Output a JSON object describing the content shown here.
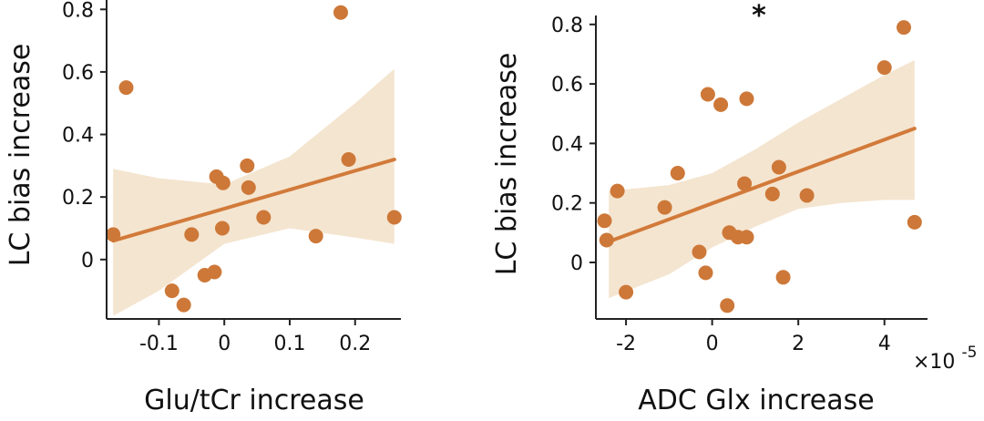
{
  "chart_data": [
    {
      "type": "scatter",
      "xlabel": "Glu/tCr increase",
      "ylabel": "LC bias increase",
      "xlim": [
        -0.18,
        0.27
      ],
      "ylim": [
        -0.19,
        0.83
      ],
      "xticks": [
        -0.1,
        0,
        0.1,
        0.2
      ],
      "xtick_labels": [
        "-0.1",
        "0",
        "0.1",
        "0.2"
      ],
      "yticks": [
        0,
        0.2,
        0.4,
        0.6,
        0.8
      ],
      "ytick_labels": [
        "0",
        "0.2",
        "0.4",
        "0.6",
        "0.8"
      ],
      "colors": {
        "points": "#cd7838",
        "fit": "#d27a3a",
        "band": "#f0dcc0"
      },
      "fit": {
        "x": [
          -0.17,
          0.26
        ],
        "y": [
          0.06,
          0.32
        ]
      },
      "band": {
        "x": [
          -0.17,
          -0.1,
          0,
          0.1,
          0.2,
          0.26
        ],
        "upper": [
          0.29,
          0.26,
          0.24,
          0.33,
          0.5,
          0.61
        ],
        "lower": [
          -0.18,
          -0.1,
          0.05,
          0.1,
          0.07,
          0.05
        ]
      },
      "points": [
        {
          "x": -0.17,
          "y": 0.08
        },
        {
          "x": -0.15,
          "y": 0.55
        },
        {
          "x": -0.08,
          "y": -0.1
        },
        {
          "x": -0.062,
          "y": -0.145
        },
        {
          "x": -0.05,
          "y": 0.08
        },
        {
          "x": -0.03,
          "y": -0.05
        },
        {
          "x": -0.015,
          "y": -0.04
        },
        {
          "x": -0.012,
          "y": 0.265
        },
        {
          "x": -0.002,
          "y": 0.245
        },
        {
          "x": -0.003,
          "y": 0.1
        },
        {
          "x": 0.035,
          "y": 0.3
        },
        {
          "x": 0.037,
          "y": 0.23
        },
        {
          "x": 0.06,
          "y": 0.135
        },
        {
          "x": 0.14,
          "y": 0.075
        },
        {
          "x": 0.178,
          "y": 0.79
        },
        {
          "x": 0.19,
          "y": 0.32
        },
        {
          "x": 0.26,
          "y": 0.135
        }
      ]
    },
    {
      "type": "scatter",
      "xlabel": "ADC Glx increase",
      "ylabel": "LC bias increase",
      "annotation": "*",
      "x_multiplier": "×10",
      "x_multiplier_exp": "-5",
      "xlim": [
        -2.7,
        5.0
      ],
      "ylim": [
        -0.19,
        0.83
      ],
      "xticks": [
        -2,
        0,
        2,
        4
      ],
      "xtick_labels": [
        "-2",
        "0",
        "2",
        "4"
      ],
      "yticks": [
        0,
        0.2,
        0.4,
        0.6,
        0.8
      ],
      "ytick_labels": [
        "0",
        "0.2",
        "0.4",
        "0.6",
        "0.8"
      ],
      "colors": {
        "points": "#cd7838",
        "fit": "#d27a3a",
        "band": "#f0dcc0"
      },
      "fit": {
        "x": [
          -2.4,
          4.7
        ],
        "y": [
          0.07,
          0.45
        ]
      },
      "band": {
        "x": [
          -2.4,
          -1,
          0,
          1,
          2,
          3,
          4,
          4.7
        ],
        "upper": [
          0.24,
          0.26,
          0.3,
          0.38,
          0.47,
          0.55,
          0.63,
          0.68
        ],
        "lower": [
          -0.12,
          -0.04,
          0.05,
          0.12,
          0.18,
          0.2,
          0.21,
          0.21
        ]
      },
      "points": [
        {
          "x": -2.5,
          "y": 0.14
        },
        {
          "x": -2.45,
          "y": 0.075
        },
        {
          "x": -2.2,
          "y": 0.24
        },
        {
          "x": -2.0,
          "y": -0.1
        },
        {
          "x": -1.1,
          "y": 0.185
        },
        {
          "x": -0.8,
          "y": 0.3
        },
        {
          "x": -0.3,
          "y": 0.035
        },
        {
          "x": -0.15,
          "y": -0.035
        },
        {
          "x": -0.1,
          "y": 0.565
        },
        {
          "x": 0.2,
          "y": 0.53
        },
        {
          "x": 0.35,
          "y": -0.145
        },
        {
          "x": 0.4,
          "y": 0.1
        },
        {
          "x": 0.6,
          "y": 0.085
        },
        {
          "x": 0.75,
          "y": 0.265
        },
        {
          "x": 0.8,
          "y": 0.085
        },
        {
          "x": 0.8,
          "y": 0.55
        },
        {
          "x": 1.4,
          "y": 0.23
        },
        {
          "x": 1.55,
          "y": 0.32
        },
        {
          "x": 1.65,
          "y": -0.05
        },
        {
          "x": 2.2,
          "y": 0.225
        },
        {
          "x": 4.0,
          "y": 0.655
        },
        {
          "x": 4.45,
          "y": 0.79
        },
        {
          "x": 4.7,
          "y": 0.135
        }
      ]
    }
  ]
}
